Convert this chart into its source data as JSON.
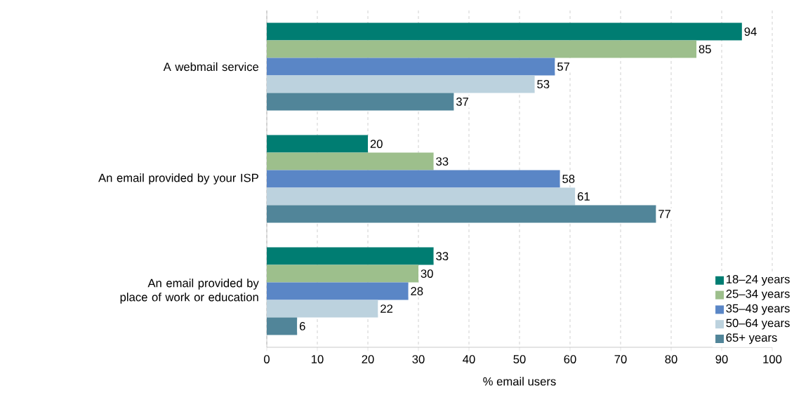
{
  "chart_data": {
    "type": "bar",
    "orientation": "horizontal",
    "xlabel": "% email users",
    "categories": [
      "A webmail service",
      "An email provided by your ISP",
      "An email provided by place of work or education"
    ],
    "series": [
      {
        "name": "18–24 years",
        "color": "#007d72",
        "values": [
          94,
          20,
          33
        ]
      },
      {
        "name": "25–34 years",
        "color": "#9dbf8c",
        "values": [
          85,
          33,
          30
        ]
      },
      {
        "name": "35–49 years",
        "color": "#5a86c6",
        "values": [
          57,
          58,
          28
        ]
      },
      {
        "name": "50–64 years",
        "color": "#bcd2de",
        "values": [
          53,
          61,
          22
        ]
      },
      {
        "name": "65+ years",
        "color": "#518599",
        "values": [
          37,
          77,
          6
        ]
      }
    ],
    "xlim": [
      0,
      100
    ],
    "xticks": [
      0,
      10,
      20,
      30,
      40,
      50,
      60,
      70,
      80,
      90,
      100
    ],
    "grid": "x",
    "legend": "bottom right",
    "data_labels": true
  }
}
